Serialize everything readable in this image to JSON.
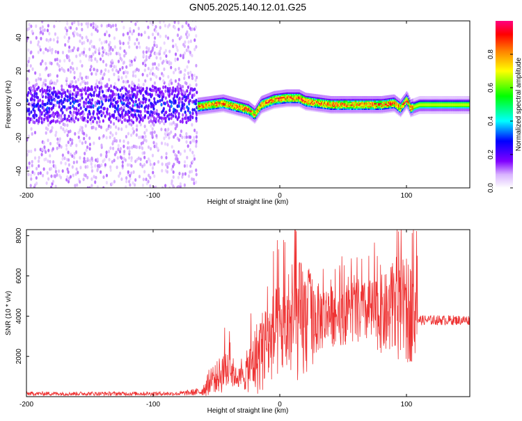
{
  "figure": {
    "title": "GN05.2025.140.12.01.G25"
  },
  "chart_data": [
    {
      "type": "heatmap",
      "xlabel": "Height of straight line (km)",
      "ylabel": "Frequency (Hz)",
      "xlim": [
        -200,
        150
      ],
      "ylim": [
        -50,
        50
      ],
      "x_ticks": [
        -200,
        -100,
        0,
        100
      ],
      "y_ticks": [
        -40,
        -20,
        0,
        20,
        40
      ],
      "colorbar": {
        "label": "Normalized spectral amplitude",
        "range": [
          0,
          1
        ],
        "ticks": [
          0.0,
          0.2,
          0.4,
          0.6,
          0.8
        ],
        "colormap": [
          "#ffffff",
          "#d9b3ff",
          "#8000ff",
          "#0000ff",
          "#00ffff",
          "#00ff00",
          "#ffff00",
          "#ff8000",
          "#ff0000",
          "#ff0080"
        ]
      },
      "regions": [
        {
          "x": [
            -200,
            -65
          ],
          "description_values": {
            "noise_band_center_hz": 0,
            "noise_band_halfwidth_hz": 12,
            "peak_amplitude": 0.3
          }
        },
        {
          "x": [
            -65,
            105
          ],
          "description_values": {
            "signal_center_hz_mean": 1,
            "signal_halfwidth_hz": 3,
            "peak_amplitude": 0.85
          }
        },
        {
          "x": [
            105,
            150
          ],
          "description_values": {
            "signal_center_hz_mean": 0,
            "signal_halfwidth_hz": 2,
            "peak_amplitude": 0.6
          }
        }
      ],
      "ridge": {
        "x": [
          -65,
          -55,
          -45,
          -35,
          -25,
          -20,
          -15,
          -5,
          5,
          15,
          20,
          30,
          40,
          50,
          60,
          70,
          80,
          90,
          95,
          100,
          103,
          110,
          150
        ],
        "y": [
          -1,
          0,
          1,
          -1,
          -3,
          -6,
          0,
          3,
          4,
          4,
          2,
          1,
          0,
          0,
          0,
          0,
          0,
          1,
          -2,
          3,
          -2,
          0,
          0
        ]
      }
    },
    {
      "type": "line",
      "xlabel": "Height of straight line (km)",
      "ylabel": "SNR (10 * v/v)",
      "xlim": [
        -200,
        150
      ],
      "ylim": [
        0,
        8300
      ],
      "x_ticks": [
        -200,
        -100,
        0,
        100
      ],
      "y_ticks": [
        2000,
        4000,
        6000,
        8000
      ],
      "series": [
        {
          "color": "#ee3333",
          "envelope": {
            "x": [
              -200,
              -160,
              -120,
              -80,
              -62,
              -55,
              -45,
              -40,
              -35,
              -30,
              -20,
              -15,
              -10,
              -5,
              0,
              5,
              10,
              15,
              18,
              20,
              25,
              30,
              40,
              50,
              60,
              70,
              80,
              85,
              90,
              95,
              100,
              105,
              108,
              110,
              120,
              130,
              140,
              150
            ],
            "center": [
              150,
              150,
              150,
              150,
              250,
              700,
              1200,
              1500,
              1000,
              900,
              1800,
              2200,
              2600,
              3000,
              3300,
              3300,
              3600,
              3700,
              3700,
              3700,
              3800,
              3900,
              4000,
              4100,
              4100,
              4200,
              4100,
              4100,
              4300,
              4300,
              4200,
              4300,
              4300,
              3800,
              3800,
              3800,
              3800,
              3800
            ],
            "spread": [
              100,
              100,
              100,
              100,
              200,
              700,
              1500,
              1800,
              700,
              800,
              2500,
              3000,
              3000,
              3200,
              3500,
              3500,
              4000,
              4300,
              4800,
              4300,
              3500,
              2500,
              2200,
              2200,
              2200,
              2300,
              2800,
              3000,
              3500,
              3800,
              3800,
              3600,
              3000,
              250,
              250,
              250,
              250,
              250
            ]
          }
        }
      ]
    }
  ]
}
